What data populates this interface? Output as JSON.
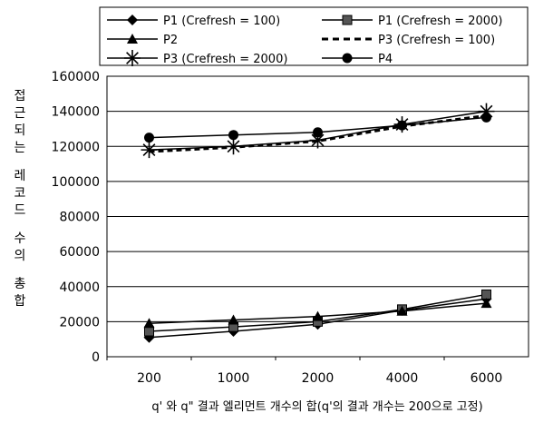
{
  "chart_data": {
    "type": "line",
    "categories": [
      "200",
      "1000",
      "2000",
      "4000",
      "6000"
    ],
    "ylim": [
      0,
      160000
    ],
    "yticks": [
      0,
      20000,
      40000,
      60000,
      80000,
      100000,
      120000,
      140000,
      160000
    ],
    "grid": "horizontal",
    "legend_position": "top",
    "ylabel": "접근되는 레코드 수의 총합",
    "xlabel": "q' 와 q\" 결과 엘리먼트 개수의 합(q'의 결과 개수는 200으로 고정)",
    "series": [
      {
        "name": "P1 (Crefresh = 100)",
        "marker": "diamond",
        "line": "solid",
        "color": "#000000",
        "values": [
          11000,
          14500,
          18500,
          26500,
          33000
        ]
      },
      {
        "name": "P1 (Crefresh = 2000)",
        "marker": "square",
        "line": "solid",
        "color": "#000000",
        "values": [
          14500,
          17000,
          20000,
          27000,
          35500
        ]
      },
      {
        "name": "P2",
        "marker": "triangle",
        "line": "solid",
        "color": "#000000",
        "values": [
          19000,
          21000,
          23000,
          26000,
          30500
        ]
      },
      {
        "name": "P3 (Crefresh = 100)",
        "marker": "none",
        "line": "dashed",
        "color": "#000000",
        "values": [
          117000,
          119500,
          123000,
          131500,
          137500
        ]
      },
      {
        "name": "P3 (Crefresh = 2000)",
        "marker": "asterisk",
        "line": "solid",
        "color": "#000000",
        "values": [
          118000,
          120000,
          123500,
          132500,
          140000
        ]
      },
      {
        "name": "P4",
        "marker": "circle",
        "line": "solid",
        "color": "#000000",
        "values": [
          125000,
          126500,
          128000,
          132000,
          136500
        ]
      }
    ]
  }
}
